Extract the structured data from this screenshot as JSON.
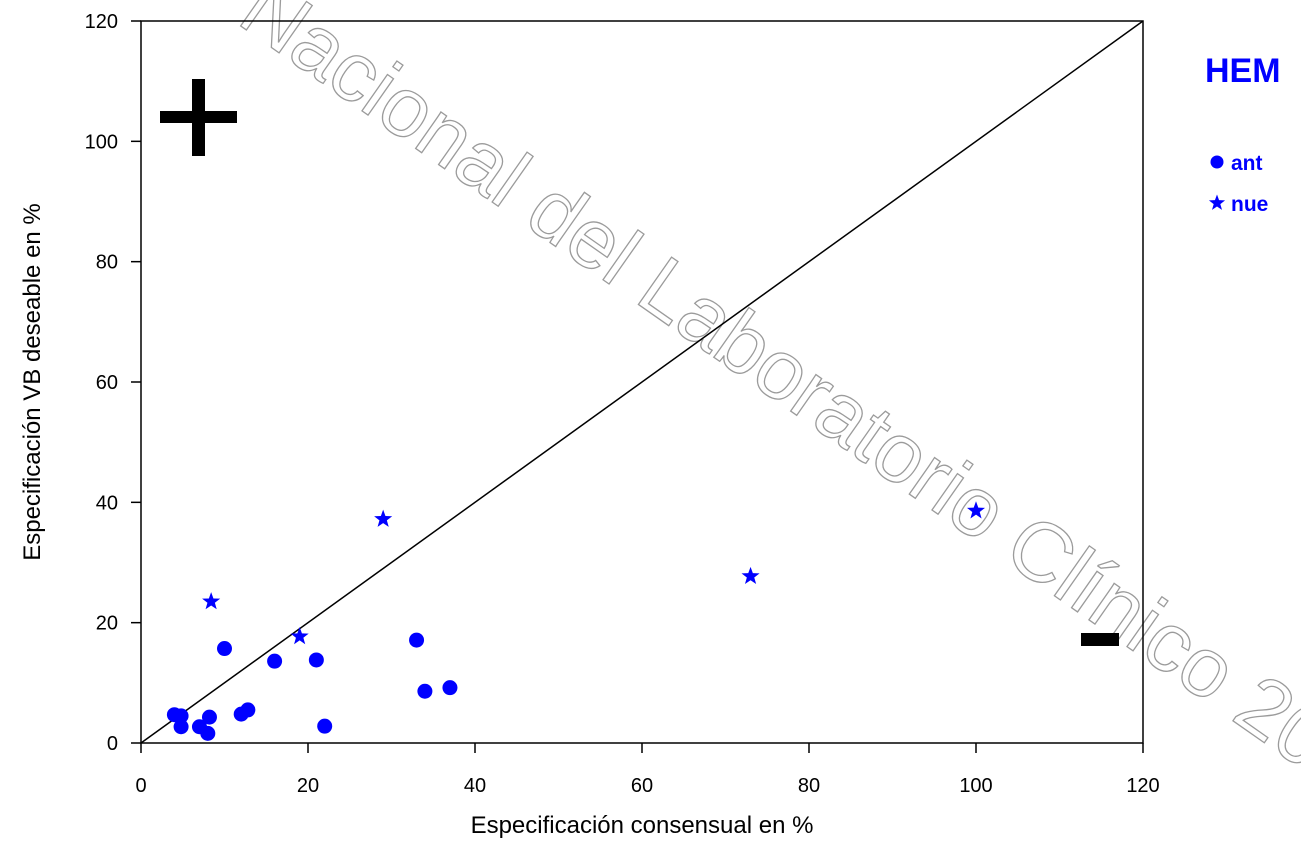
{
  "watermark": "Nacional del Laboratorio Clínico 20",
  "chart_data": {
    "type": "scatter",
    "title": "",
    "xlabel": "Especificación consensual en %",
    "ylabel": "Especificación VB deseable en %",
    "xlim": [
      0,
      120
    ],
    "ylim": [
      0,
      120
    ],
    "xticks": [
      "0",
      "20",
      "40",
      "60",
      "80",
      "100",
      "120"
    ],
    "yticks": [
      "0",
      "20",
      "40",
      "60",
      "80",
      "100",
      "120"
    ],
    "grid": false,
    "reference_line": {
      "from": [
        0,
        0
      ],
      "to": [
        120,
        120
      ]
    },
    "legend": {
      "title": "HEM",
      "placement": "right",
      "entries": [
        {
          "label": "ant",
          "marker": "circle"
        },
        {
          "label": "nue",
          "marker": "star"
        }
      ]
    },
    "annotations": [
      {
        "text": "+",
        "region": "top-left"
      },
      {
        "text": "-",
        "region": "bottom-right"
      }
    ],
    "colors": {
      "series": "#0000ff",
      "axes": "#000000"
    },
    "series": [
      {
        "name": "ant",
        "marker": "circle",
        "points": [
          [
            4,
            4.7
          ],
          [
            4.8,
            4.5
          ],
          [
            4.8,
            2.7
          ],
          [
            7,
            2.7
          ],
          [
            8.2,
            4.3
          ],
          [
            8,
            1.6
          ],
          [
            10,
            15.7
          ],
          [
            12,
            4.8
          ],
          [
            12.8,
            5.5
          ],
          [
            16,
            13.6
          ],
          [
            21,
            13.8
          ],
          [
            22,
            2.8
          ],
          [
            33,
            17.1
          ],
          [
            34,
            8.6
          ],
          [
            37,
            9.2
          ]
        ]
      },
      {
        "name": "nue",
        "marker": "star",
        "points": [
          [
            8.4,
            23.5
          ],
          [
            19,
            17.7
          ],
          [
            29,
            37.2
          ],
          [
            73,
            27.7
          ],
          [
            100,
            38.6
          ]
        ]
      }
    ]
  }
}
